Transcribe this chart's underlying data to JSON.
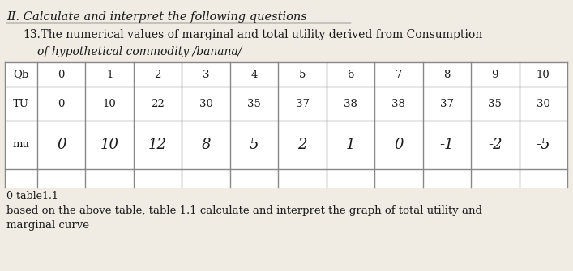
{
  "title_line": "II. Calculate and interpret the following questions",
  "question_number": "13.",
  "question_text": " The numerical values of marginal and total utility derived from Consumption",
  "question_text2": "of hypothetical commodity /banana/",
  "table_caption": "0 table1.1",
  "footer_line1": "based on the above table, table 1.1 calculate and interpret the graph of total utility and",
  "footer_line2": "marginal curve",
  "Qb": [
    "0",
    "1",
    "2",
    "3",
    "4",
    "5",
    "6",
    "7",
    "8",
    "9",
    "10"
  ],
  "TU": [
    "0",
    "10",
    "22",
    "30",
    "35",
    "37",
    "38",
    "38",
    "37",
    "35",
    "30"
  ],
  "mu": [
    "0",
    "10",
    "12",
    "8",
    "5",
    "2",
    "1",
    "0",
    "-1",
    "-2",
    "-5"
  ],
  "background_color": "#f0ece4",
  "text_color": "#1a1a1a",
  "table_bg": "#ffffff",
  "table_line_color": "#888888"
}
